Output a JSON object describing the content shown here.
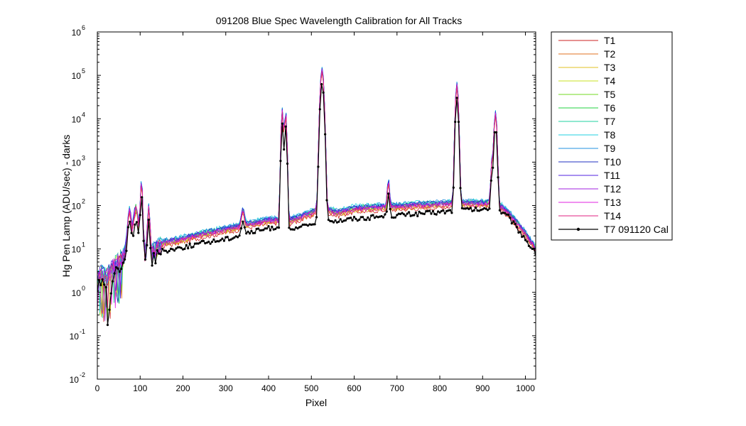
{
  "chart_data": {
    "type": "line",
    "title": "091208 Blue Spec Wavelength Calibration for All Tracks",
    "xlabel": "Pixel",
    "ylabel": "Hg Pen Lamp (ADU/sec) - darks",
    "xlim": [
      0,
      1024
    ],
    "ylim": [
      0.01,
      1000000
    ],
    "yscale": "log",
    "grid": false,
    "legend_position": "outside-right",
    "x_ticks": [
      0,
      100,
      200,
      300,
      400,
      500,
      600,
      700,
      800,
      900,
      1000
    ],
    "x_tick_labels": [
      "0",
      "100",
      "200",
      "300",
      "400",
      "500",
      "600",
      "700",
      "800",
      "900",
      "1000"
    ],
    "y_ticks": [
      {
        "value": 0.01,
        "base": "10",
        "exp": "-2"
      },
      {
        "value": 0.1,
        "base": "10",
        "exp": "-1"
      },
      {
        "value": 1,
        "base": "10",
        "exp": "0"
      },
      {
        "value": 10,
        "base": "10",
        "exp": "1"
      },
      {
        "value": 100,
        "base": "10",
        "exp": "2"
      },
      {
        "value": 1000,
        "base": "10",
        "exp": "3"
      },
      {
        "value": 10000,
        "base": "10",
        "exp": "4"
      },
      {
        "value": 100000,
        "base": "10",
        "exp": "5"
      },
      {
        "value": 1000000,
        "base": "10",
        "exp": "6"
      }
    ],
    "baseline_profile": {
      "x": [
        0,
        10,
        20,
        30,
        40,
        50,
        60,
        70,
        80,
        90,
        100,
        110,
        120,
        130,
        150,
        200,
        250,
        300,
        350,
        400,
        420,
        440,
        450,
        480,
        500,
        515,
        540,
        560,
        600,
        650,
        700,
        750,
        800,
        830,
        850,
        880,
        900,
        920,
        940,
        960,
        980,
        1000,
        1010,
        1024
      ],
      "y": [
        2,
        2.5,
        2,
        3,
        4,
        5,
        6,
        10,
        15,
        30,
        12,
        8,
        7,
        8,
        12,
        15,
        20,
        25,
        32,
        40,
        42,
        38,
        40,
        50,
        60,
        75,
        70,
        60,
        75,
        80,
        85,
        90,
        95,
        100,
        100,
        100,
        100,
        100,
        90,
        60,
        35,
        20,
        14,
        9
      ]
    },
    "peaks": [
      {
        "x": 75,
        "height": 60,
        "width": 3
      },
      {
        "x": 90,
        "height": 50,
        "width": 4
      },
      {
        "x": 103,
        "height": 300,
        "width": 2
      },
      {
        "x": 120,
        "height": 80,
        "width": 2
      },
      {
        "x": 340,
        "height": 40,
        "width": 3
      },
      {
        "x": 432,
        "height": 14000,
        "width": 2
      },
      {
        "x": 440,
        "height": 12000,
        "width": 2
      },
      {
        "x": 525,
        "height": 120000,
        "width": 3
      },
      {
        "x": 680,
        "height": 250,
        "width": 2
      },
      {
        "x": 840,
        "height": 55000,
        "width": 2.5
      },
      {
        "x": 922,
        "height": 900,
        "width": 2
      },
      {
        "x": 930,
        "height": 12000,
        "width": 2.5
      }
    ],
    "reference_profile": {
      "x": [
        0,
        10,
        20,
        25,
        30,
        40,
        50,
        60,
        70,
        80,
        90,
        100,
        110,
        120,
        130,
        150,
        200,
        250,
        300,
        350,
        400,
        420,
        445,
        460,
        500,
        515,
        540,
        560,
        600,
        650,
        700,
        750,
        800,
        830,
        850,
        880,
        900,
        920,
        940,
        960,
        980,
        1000,
        1010,
        1024
      ],
      "y": [
        1.5,
        1.8,
        1.2,
        0.07,
        1,
        3,
        4,
        5,
        8,
        12,
        25,
        8,
        6,
        5,
        6,
        9,
        11,
        14,
        17,
        23,
        30,
        32,
        25,
        28,
        38,
        45,
        48,
        45,
        50,
        55,
        60,
        65,
        70,
        75,
        80,
        80,
        80,
        80,
        75,
        55,
        30,
        17,
        12,
        8
      ]
    },
    "series": [
      {
        "name": "T1",
        "color": "#cc2222",
        "scale": 0.95
      },
      {
        "name": "T2",
        "color": "#e07020",
        "scale": 1.0
      },
      {
        "name": "T3",
        "color": "#e0c020",
        "scale": 1.05
      },
      {
        "name": "T4",
        "color": "#c8e020",
        "scale": 1.1
      },
      {
        "name": "T5",
        "color": "#70d820",
        "scale": 1.15
      },
      {
        "name": "T6",
        "color": "#20d040",
        "scale": 1.2
      },
      {
        "name": "T7",
        "color": "#20d0a0",
        "scale": 1.25
      },
      {
        "name": "T8",
        "color": "#20d0e0",
        "scale": 1.3
      },
      {
        "name": "T9",
        "color": "#2090e0",
        "scale": 1.28
      },
      {
        "name": "T10",
        "color": "#2030c0",
        "scale": 1.22
      },
      {
        "name": "T11",
        "color": "#5020e0",
        "scale": 1.18
      },
      {
        "name": "T12",
        "color": "#a020e0",
        "scale": 1.15
      },
      {
        "name": "T13",
        "color": "#e020e0",
        "scale": 1.1
      },
      {
        "name": "T14",
        "color": "#e02080",
        "scale": 1.05
      },
      {
        "name": "T7 091120 Cal",
        "color": "#000000",
        "scale": 1.0,
        "marker": "dot"
      }
    ]
  }
}
